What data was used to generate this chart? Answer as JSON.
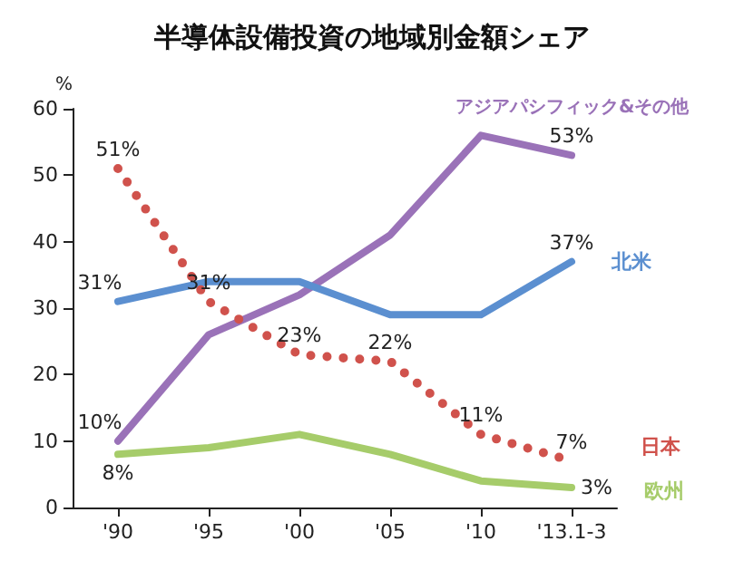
{
  "chart_data": {
    "type": "line",
    "title": "半導体設備投資の地域別金額シェア",
    "ylabel": "%",
    "categories": [
      "'90",
      "'95",
      "'00",
      "'05",
      "'10",
      "'13.1-3"
    ],
    "ylim": [
      0,
      60
    ],
    "yticks": [
      0,
      10,
      20,
      30,
      40,
      50,
      60
    ],
    "grid": false,
    "legend": false,
    "marker": "none",
    "series": [
      {
        "name": "アジアパシフィック&その他",
        "color": "#9a72b8",
        "values": [
          10,
          26,
          32,
          41,
          56,
          53
        ],
        "value_labels": [
          "10%",
          null,
          null,
          null,
          null,
          "53%"
        ]
      },
      {
        "name": "北米",
        "color": "#5b8fd0",
        "values": [
          31,
          34,
          34,
          29,
          29,
          37
        ],
        "value_labels": [
          "31%",
          null,
          null,
          null,
          null,
          "37%"
        ]
      },
      {
        "name": "日本",
        "color": "#d0524c",
        "line_style": "dotted",
        "values": [
          51,
          31,
          23,
          22,
          11,
          7
        ],
        "value_labels": [
          "51%",
          "31%",
          "23%",
          "22%",
          "11%",
          "7%"
        ]
      },
      {
        "name": "欧州",
        "color": "#a6cc6a",
        "values": [
          8,
          9,
          11,
          8,
          4,
          3
        ],
        "value_labels": [
          "8%",
          null,
          null,
          null,
          null,
          "3%"
        ]
      }
    ]
  }
}
